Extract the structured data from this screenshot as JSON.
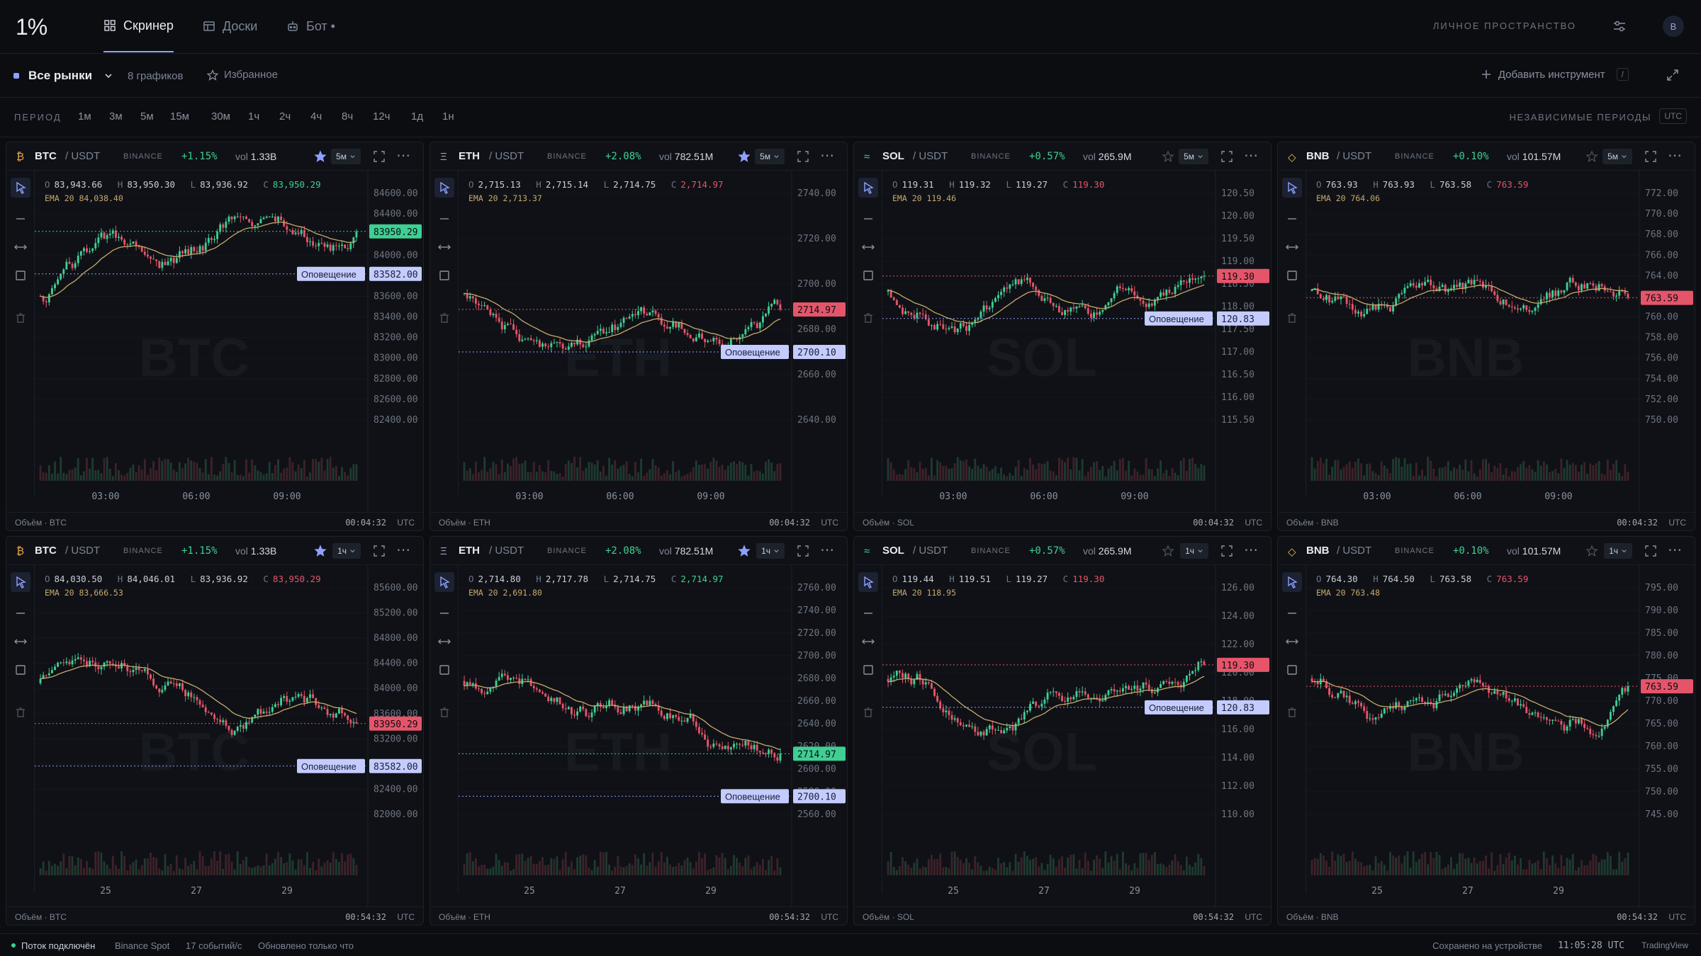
{
  "nav": {
    "logo": "1%",
    "tabs": [
      {
        "label": "Скринер"
      },
      {
        "label": "Доски"
      },
      {
        "label": "Бот •"
      }
    ],
    "workspace_label": "ЛИЧНОЕ ПРОСТРАНСТВО",
    "avatar": "B"
  },
  "toolbar": {
    "market": "Все рынки",
    "charts_count": "8 графиков",
    "favorites": "Избранное",
    "add_instrument": "Добавить инструмент",
    "shortcut": "/"
  },
  "periods": {
    "label": "ПЕРИОД",
    "options": [
      "1м",
      "3м",
      "5м",
      "15м",
      "30м",
      "1ч",
      "2ч",
      "4ч",
      "8ч",
      "12ч",
      "1д",
      "1н"
    ],
    "independent_label": "НЕЗАВИСИМЫЕ ПЕРИОДЫ",
    "tz": "UTC"
  },
  "panels": [
    {
      "sym": "BTC",
      "quote": "/ USDT",
      "exch": "BINANCE",
      "chg": "+1.15%",
      "vol_k": "vol",
      "vol": "1.33B",
      "tf": "5м",
      "starred": true,
      "icon": "₿",
      "iconColor": "#e5a54b",
      "o": "83,943.66",
      "h": "83,950.30",
      "l": "83,936.92",
      "c": "83,950.29",
      "cUp": true,
      "ema": "EMA 20 84,038.40",
      "yticks": [
        "84600.00",
        "84400.00",
        "84200.00",
        "84000.00",
        "83800.00",
        "83600.00",
        "83400.00",
        "83200.00",
        "83000.00",
        "82800.00",
        "82600.00",
        "82400.00"
      ],
      "xticks": [
        "03:00",
        "06:00",
        "09:00"
      ],
      "price": "83950.29",
      "priceUp": true,
      "alertLabel": "Оповещение",
      "alert": "83582.00",
      "volLabel": "Объём · BTC",
      "time": "00:04:32",
      "tz": "UTC",
      "watermark": "BTC",
      "seed": 11
    },
    {
      "sym": "ETH",
      "quote": "/ USDT",
      "exch": "BINANCE",
      "chg": "+2.08%",
      "vol_k": "vol",
      "vol": "782.51M",
      "tf": "5м",
      "starred": true,
      "icon": "Ξ",
      "iconColor": "#9aa5c8",
      "o": "2,715.13",
      "h": "2,715.14",
      "l": "2,714.75",
      "c": "2,714.97",
      "cUp": false,
      "ema": "EMA 20 2,713.37",
      "yticks": [
        "2740.00",
        "2720.00",
        "2700.00",
        "2680.00",
        "2660.00",
        "2640.00"
      ],
      "xticks": [
        "03:00",
        "06:00",
        "09:00"
      ],
      "price": "2714.97",
      "priceUp": false,
      "alertLabel": "Оповещение",
      "alert": "2700.10",
      "volLabel": "Объём · ETH",
      "time": "00:04:32",
      "tz": "UTC",
      "watermark": "ETH",
      "seed": 23
    },
    {
      "sym": "SOL",
      "quote": "/ USDT",
      "exch": "BINANCE",
      "chg": "+0.57%",
      "vol_k": "vol",
      "vol": "265.9M",
      "tf": "5м",
      "starred": false,
      "icon": "≈",
      "iconColor": "#49c7b3",
      "o": "119.31",
      "h": "119.32",
      "l": "119.27",
      "c": "119.30",
      "cUp": false,
      "ema": "EMA 20 119.46",
      "yticks": [
        "120.50",
        "120.00",
        "119.50",
        "119.00",
        "118.50",
        "118.00",
        "117.50",
        "117.00",
        "116.50",
        "116.00",
        "115.50"
      ],
      "xticks": [
        "03:00",
        "06:00",
        "09:00"
      ],
      "price": "119.30",
      "priceUp": false,
      "alertLabel": "Оповещение",
      "alert": "120.83",
      "volLabel": "Объём · SOL",
      "time": "00:04:32",
      "tz": "UTC",
      "watermark": "SOL",
      "seed": 37
    },
    {
      "sym": "BNB",
      "quote": "/ USDT",
      "exch": "BINANCE",
      "chg": "+0.10%",
      "vol_k": "vol",
      "vol": "101.57M",
      "tf": "5м",
      "starred": false,
      "icon": "◇",
      "iconColor": "#e5b84b",
      "o": "763.93",
      "h": "763.93",
      "l": "763.58",
      "c": "763.59",
      "cUp": false,
      "ema": "EMA 20 764.06",
      "yticks": [
        "772.00",
        "770.00",
        "768.00",
        "766.00",
        "764.00",
        "762.00",
        "760.00",
        "758.00",
        "756.00",
        "754.00",
        "752.00",
        "750.00"
      ],
      "xticks": [
        "03:00",
        "06:00",
        "09:00"
      ],
      "price": "763.59",
      "priceUp": false,
      "alertLabel": "",
      "alert": "",
      "volLabel": "Объём · BNB",
      "time": "00:04:32",
      "tz": "UTC",
      "watermark": "BNB",
      "seed": 41
    },
    {
      "sym": "BTC",
      "quote": "/ USDT",
      "exch": "BINANCE",
      "chg": "+1.15%",
      "vol_k": "vol",
      "vol": "1.33B",
      "tf": "1ч",
      "starred": true,
      "icon": "₿",
      "iconColor": "#e5a54b",
      "o": "84,030.50",
      "h": "84,046.01",
      "l": "83,936.92",
      "c": "83,950.29",
      "cUp": false,
      "ema": "EMA 20 83,666.53",
      "yticks": [
        "85600.00",
        "85200.00",
        "84800.00",
        "84400.00",
        "84000.00",
        "83600.00",
        "83200.00",
        "82800.00",
        "82400.00",
        "82000.00"
      ],
      "xticks": [
        "25",
        "27",
        "29"
      ],
      "price": "83950.29",
      "priceUp": false,
      "alertLabel": "Оповещение",
      "alert": "83582.00",
      "volLabel": "Объём · BTC",
      "time": "00:54:32",
      "tz": "UTC",
      "watermark": "BTC",
      "seed": 53
    },
    {
      "sym": "ETH",
      "quote": "/ USDT",
      "exch": "BINANCE",
      "chg": "+2.08%",
      "vol_k": "vol",
      "vol": "782.51M",
      "tf": "1ч",
      "starred": true,
      "icon": "Ξ",
      "iconColor": "#9aa5c8",
      "o": "2,714.80",
      "h": "2,717.78",
      "l": "2,714.75",
      "c": "2,714.97",
      "cUp": true,
      "ema": "EMA 20 2,691.80",
      "yticks": [
        "2760.00",
        "2740.00",
        "2720.00",
        "2700.00",
        "2680.00",
        "2660.00",
        "2640.00",
        "2620.00",
        "2600.00",
        "2580.00",
        "2560.00"
      ],
      "xticks": [
        "25",
        "27",
        "29"
      ],
      "price": "2714.97",
      "priceUp": true,
      "alertLabel": "Оповещение",
      "alert": "2700.10",
      "volLabel": "Объём · ETH",
      "time": "00:54:32",
      "tz": "UTC",
      "watermark": "ETH",
      "seed": 67
    },
    {
      "sym": "SOL",
      "quote": "/ USDT",
      "exch": "BINANCE",
      "chg": "+0.57%",
      "vol_k": "vol",
      "vol": "265.9M",
      "tf": "1ч",
      "starred": false,
      "icon": "≈",
      "iconColor": "#49c7b3",
      "o": "119.44",
      "h": "119.51",
      "l": "119.27",
      "c": "119.30",
      "cUp": false,
      "ema": "EMA 20 118.95",
      "yticks": [
        "126.00",
        "124.00",
        "122.00",
        "120.00",
        "118.00",
        "116.00",
        "114.00",
        "112.00",
        "110.00"
      ],
      "xticks": [
        "25",
        "27",
        "29"
      ],
      "price": "119.30",
      "priceUp": false,
      "alertLabel": "Оповещение",
      "alert": "120.83",
      "volLabel": "Объём · SOL",
      "time": "00:54:32",
      "tz": "UTC",
      "watermark": "SOL",
      "seed": 79
    },
    {
      "sym": "BNB",
      "quote": "/ USDT",
      "exch": "BINANCE",
      "chg": "+0.10%",
      "vol_k": "vol",
      "vol": "101.57M",
      "tf": "1ч",
      "starred": false,
      "icon": "◇",
      "iconColor": "#e5b84b",
      "o": "764.30",
      "h": "764.50",
      "l": "763.58",
      "c": "763.59",
      "cUp": false,
      "ema": "EMA 20 763.48",
      "yticks": [
        "795.00",
        "790.00",
        "785.00",
        "780.00",
        "775.00",
        "770.00",
        "765.00",
        "760.00",
        "755.00",
        "750.00",
        "745.00"
      ],
      "xticks": [
        "25",
        "27",
        "29"
      ],
      "price": "763.59",
      "priceUp": false,
      "alertLabel": "",
      "alert": "",
      "volLabel": "Объём · BNB",
      "time": "00:54:32",
      "tz": "UTC",
      "watermark": "BNB",
      "seed": 83
    }
  ],
  "status": {
    "stream": "Поток подключён",
    "source": "Binance Spot",
    "rate": "17 событий/с",
    "updated": "Обновлено только что",
    "saved": "Сохранено на устройстве",
    "clock": "11:05:28 UTC",
    "brand": "TradingView"
  },
  "colors": {
    "up": "#3fcf93",
    "down": "#e5556a",
    "accent": "#8fa0ff",
    "ema": "#c8a96b"
  }
}
